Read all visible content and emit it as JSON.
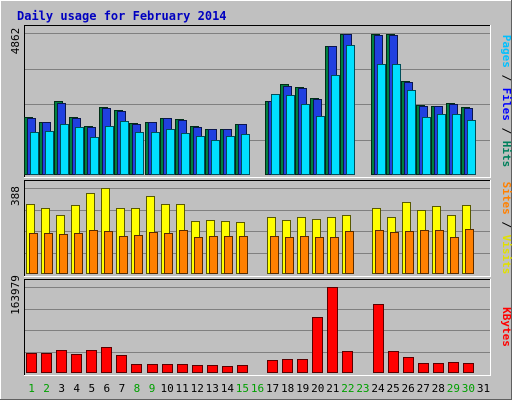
{
  "chart_data": {
    "type": "bar",
    "title": "Daily usage for February 2014",
    "categories": [
      "1",
      "2",
      "3",
      "4",
      "5",
      "6",
      "7",
      "8",
      "9",
      "10",
      "11",
      "12",
      "13",
      "14",
      "15",
      "16",
      "17",
      "18",
      "19",
      "20",
      "21",
      "22",
      "23",
      "24",
      "25",
      "26",
      "27",
      "28",
      "29",
      "30",
      "31"
    ],
    "weekend_days": [
      "1",
      "2",
      "8",
      "9",
      "15",
      "16",
      "22",
      "23",
      "29",
      "30"
    ],
    "panels": [
      {
        "id": "requests",
        "max_label": "4862",
        "ylim": [
          0,
          4862
        ],
        "right_labels": [
          {
            "text": "Hits",
            "color": "#00805c"
          },
          {
            "text": "Files",
            "color": "#0000ff"
          },
          {
            "text": "Pages",
            "color": "#00c0ff"
          }
        ],
        "series": [
          {
            "name": "Hits",
            "color": "#008040",
            "values": [
              1970,
              1820,
              2520,
              1980,
              1680,
              2320,
              2230,
              1770,
              1820,
              1960,
              1930,
              1680,
              1590,
              1590,
              1760,
              null,
              2540,
              3100,
              3010,
              2620,
              4420,
              4830,
              null,
              4830,
              4830,
              3230,
              2400,
              2370,
              2470,
              2340,
              null
            ]
          },
          {
            "name": "Files",
            "color": "#2040e0",
            "values": [
              1950,
              1800,
              2480,
              1950,
              1650,
              2300,
              2200,
              1750,
              1800,
              1940,
              1900,
              1650,
              1570,
              1570,
              1740,
              null,
              2520,
              3050,
              2980,
              2600,
              4410,
              4820,
              null,
              4810,
              4810,
              3190,
              2370,
              2350,
              2440,
              2310,
              null
            ]
          },
          {
            "name": "Pages",
            "color": "#00e0ff",
            "values": [
              1480,
              1520,
              1760,
              1630,
              1300,
              1690,
              1840,
              1480,
              1470,
              1570,
              1430,
              1320,
              1200,
              1350,
              1420,
              null,
              2790,
              2740,
              2430,
              2030,
              3420,
              4450,
              null,
              3790,
              3790,
              2920,
              1990,
              2090,
              2080,
              1900,
              null
            ]
          }
        ]
      },
      {
        "id": "visits",
        "max_label": "388",
        "ylim": [
          0,
          388
        ],
        "right_labels": [
          {
            "text": "Visits",
            "color": "#e0e000"
          },
          {
            "text": "Sites",
            "color": "#ff8000"
          }
        ],
        "series": [
          {
            "name": "Visits",
            "color": "#ffff00",
            "values": [
              315,
              300,
              265,
              310,
              365,
              388,
              300,
              300,
              350,
              315,
              315,
              240,
              245,
              240,
              235,
              null,
              258,
              245,
              255,
              250,
              258,
              265,
              null,
              300,
              258,
              325,
              290,
              305,
              265,
              310,
              null
            ],
            "display_values": [
              315,
              300,
              265,
              310,
              365,
              388,
              300,
              300,
              350,
              315,
              315,
              240,
              245,
              240,
              235,
              258,
              245,
              255,
              250,
              258,
              265,
              300,
              258,
              325,
              290,
              305,
              265,
              310
            ]
          },
          {
            "name": "Sites",
            "color": "#ff8000",
            "values": [
              185,
              185,
              180,
              185,
              200,
              195,
              170,
              175,
              190,
              185,
              200,
              165,
              170,
              170,
              170,
              null,
              170,
              165,
              170,
              165,
              165,
              195,
              null,
              200,
              190,
              195,
              200,
              200,
              165,
              205,
              null
            ],
            "display_values": [
              185,
              185,
              180,
              185,
              200,
              195,
              170,
              175,
              190,
              185,
              200,
              165,
              170,
              170,
              170,
              170,
              165,
              170,
              165,
              165,
              195,
              200,
              190,
              195,
              200,
              200,
              165,
              205
            ]
          }
        ]
      },
      {
        "id": "kbytes",
        "max_label": "163979",
        "ylim": [
          0,
          163979
        ],
        "right_labels": [
          {
            "text": "KBytes",
            "color": "#ff0000"
          }
        ],
        "series": [
          {
            "name": "KBytes",
            "color": "#ff0000",
            "values": [
              38000,
              38000,
              43000,
              37000,
              43000,
              49000,
              34000,
              17000,
              17000,
              17000,
              17000,
              16000,
              16000,
              14000,
              16000,
              null,
              25000,
              26000,
              27000,
              107000,
              163979,
              41000,
              null,
              131000,
              41000,
              30000,
              19000,
              20000,
              21000,
              19000,
              null
            ]
          }
        ]
      }
    ]
  }
}
